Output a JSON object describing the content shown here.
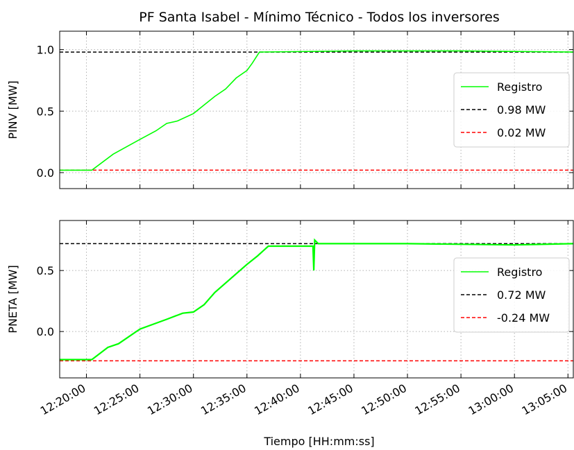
{
  "chart_data": [
    {
      "type": "line",
      "title": "PF Santa Isabel - Mínimo Técnico - Todos los inversores",
      "ylabel": "PINV [MW]",
      "ylim": [
        -0.13,
        1.15
      ],
      "yticks": [
        {
          "value": 0,
          "label": "0.0"
        },
        {
          "value": 0.5,
          "label": "0.5"
        },
        {
          "value": 1,
          "label": "1.0"
        }
      ],
      "grid": true,
      "legend": "center right",
      "x": [
        "12:17:30",
        "12:20:30",
        "12:22:30",
        "12:25:00",
        "12:26:30",
        "12:27:30",
        "12:28:30",
        "12:30:00",
        "12:31:00",
        "12:32:00",
        "12:33:00",
        "12:34:00",
        "12:35:00",
        "12:35:30",
        "12:36:10",
        "12:45:00",
        "12:55:00",
        "13:05:30"
      ],
      "series": [
        {
          "name": "Registro",
          "color": "#00ff00",
          "values": [
            0.02,
            0.02,
            0.15,
            0.27,
            0.34,
            0.4,
            0.42,
            0.48,
            0.55,
            0.62,
            0.68,
            0.77,
            0.83,
            0.89,
            0.98,
            0.99,
            0.99,
            0.98
          ]
        }
      ],
      "hlines": [
        {
          "name": "0.98 MW",
          "value": 0.98,
          "color": "#000000"
        },
        {
          "name": "0.02 MW",
          "value": 0.02,
          "color": "#ff0000"
        }
      ]
    },
    {
      "type": "line",
      "ylabel": "PNETA [MW]",
      "xlabel": "Tiempo [HH:mm:ss]",
      "xlim": [
        "12:17:30",
        "13:05:30"
      ],
      "xticks": [
        "12:20:00",
        "12:25:00",
        "12:30:00",
        "12:35:00",
        "12:40:00",
        "12:45:00",
        "12:50:00",
        "12:55:00",
        "13:00:00",
        "13:05:00"
      ],
      "ylim": [
        -0.38,
        0.91
      ],
      "yticks": [
        {
          "value": 0,
          "label": "0.0"
        },
        {
          "value": 0.5,
          "label": "0.5"
        }
      ],
      "grid": true,
      "legend": "lower right",
      "x": [
        "12:17:30",
        "12:20:30",
        "12:22:00",
        "12:23:00",
        "12:25:00",
        "12:27:30",
        "12:29:00",
        "12:30:00",
        "12:31:00",
        "12:32:00",
        "12:35:00",
        "12:36:00",
        "12:37:00",
        "12:41:10",
        "12:41:15",
        "12:41:20",
        "12:41:40",
        "12:50:00",
        "13:00:00",
        "13:05:30"
      ],
      "series": [
        {
          "name": "Registro",
          "color": "#00ff00",
          "values": [
            -0.23,
            -0.23,
            -0.13,
            -0.1,
            0.02,
            0.1,
            0.15,
            0.16,
            0.22,
            0.32,
            0.55,
            0.62,
            0.7,
            0.7,
            0.5,
            0.75,
            0.72,
            0.72,
            0.71,
            0.72
          ]
        }
      ],
      "hlines": [
        {
          "name": "0.72 MW",
          "value": 0.72,
          "color": "#000000"
        },
        {
          "name": "-0.24 MW",
          "value": -0.24,
          "color": "#ff0000"
        }
      ]
    }
  ]
}
